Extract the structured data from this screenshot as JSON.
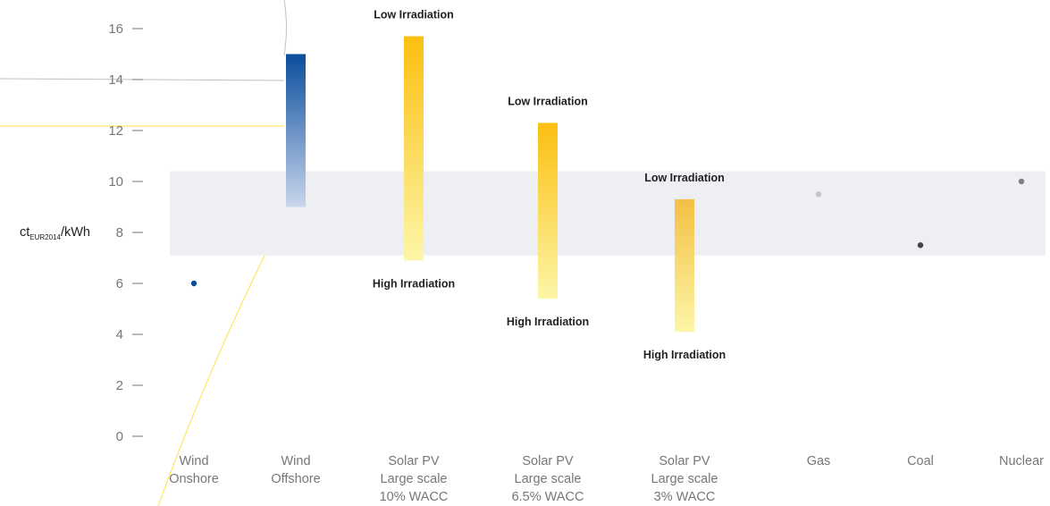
{
  "colors": {
    "band": "#edeff2",
    "wind_top": "#0a4d9c",
    "wind_bottom": "#c9d6ec",
    "solar_top": "#fbbf10",
    "solar_bottom": "#fdf6a8",
    "solar3_top": "#f3c043",
    "gas_dot": "#c4c4c4",
    "coal_dot": "#444444",
    "nuclear_dot": "#808080",
    "onshore_dot": "#0a4d9c",
    "decor_gray": "#c0c0c0",
    "decor_yellow": "#fde24a",
    "tick_text": "#777777"
  },
  "y_label": {
    "prefix": "ct",
    "subscript": "EUR2014",
    "suffix": "/kWh"
  },
  "chart_data": {
    "type": "range",
    "ylim": [
      0,
      17
    ],
    "y_ticks": [
      "0",
      "2",
      "4",
      "6",
      "8",
      "10",
      "12",
      "14",
      "16"
    ],
    "reference_band": [
      7.1,
      10.4
    ],
    "categories": [
      {
        "lines": [
          "Wind",
          "Onshore"
        ]
      },
      {
        "lines": [
          "Wind",
          "Offshore"
        ]
      },
      {
        "lines": [
          "Solar PV",
          "Large scale",
          "10% WACC"
        ]
      },
      {
        "lines": [
          "Solar PV",
          "Large scale",
          "6.5% WACC"
        ]
      },
      {
        "lines": [
          "Solar PV",
          "Large scale",
          "3% WACC"
        ]
      },
      {
        "lines": [
          "Gas"
        ]
      },
      {
        "lines": [
          "Coal"
        ]
      },
      {
        "lines": [
          "Nuclear"
        ]
      }
    ],
    "ranges": [
      {
        "category": 1,
        "low": 9.0,
        "high": 15.0,
        "style": "wind"
      },
      {
        "category": 2,
        "low": 6.9,
        "high": 15.7,
        "style": "solar",
        "high_label": "Low Irradiation",
        "low_label": "High Irradiation"
      },
      {
        "category": 3,
        "low": 5.4,
        "high": 12.3,
        "style": "solar",
        "high_label": "Low Irradiation",
        "low_label": "High Irradiation"
      },
      {
        "category": 4,
        "low": 4.1,
        "high": 9.3,
        "style": "solar3",
        "high_label": "Low Irradiation",
        "low_label": "High Irradiation"
      }
    ],
    "points": [
      {
        "category": 0,
        "value": 6.0,
        "color": "onshore_dot"
      },
      {
        "category": 5,
        "value": 9.5,
        "color": "gas_dot"
      },
      {
        "category": 6,
        "value": 7.5,
        "color": "coal_dot"
      },
      {
        "category": 7,
        "value": 10.0,
        "color": "nuclear_dot"
      }
    ]
  }
}
